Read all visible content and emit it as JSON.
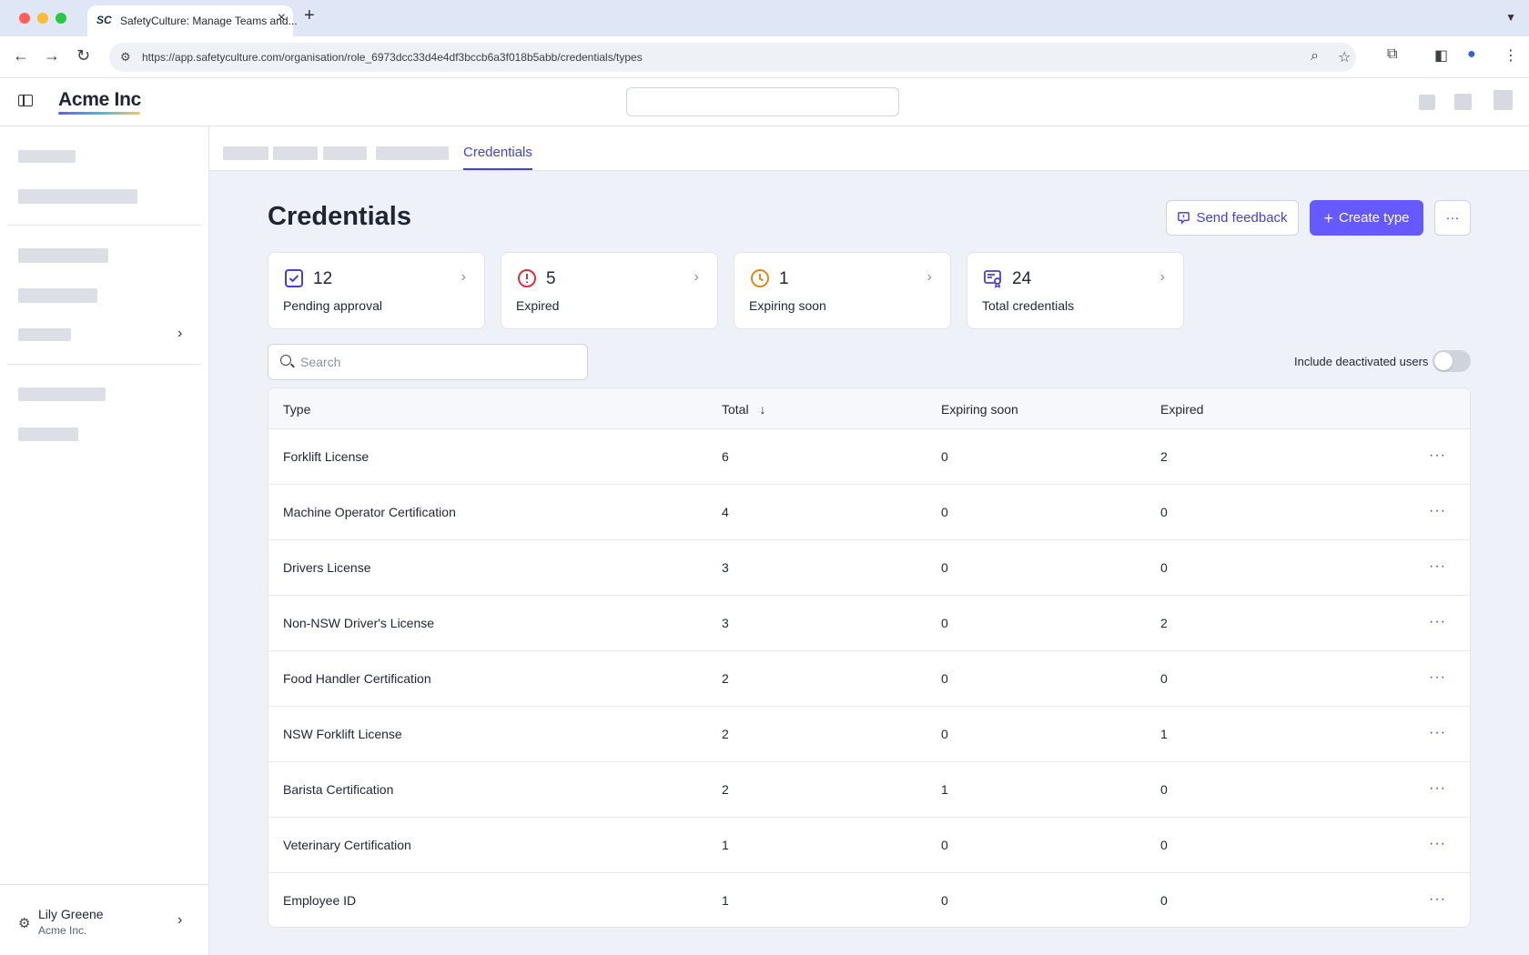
{
  "browser": {
    "tab_favicon": "SC",
    "tab_title": "SafetyCulture: Manage Teams and...",
    "url": "https://app.safetyculture.com/organisation/role_6973dcc33d4e4df3bccb6a3f018b5abb/credentials/types",
    "colors": {
      "close": "#ff5f57",
      "minimize": "#febc2e",
      "maximize": "#28c840"
    }
  },
  "header": {
    "brand": "Acme Inc"
  },
  "subnav": {
    "active_tab": "Credentials"
  },
  "page": {
    "title": "Credentials",
    "send_feedback_label": "Send feedback",
    "create_type_label": "Create type",
    "more_label": "···"
  },
  "stats": [
    {
      "value": "12",
      "label": "Pending approval",
      "icon": "check-square-icon",
      "color": "#4740d4"
    },
    {
      "value": "5",
      "label": "Expired",
      "icon": "alert-circle-icon",
      "color": "#d4343f"
    },
    {
      "value": "1",
      "label": "Expiring soon",
      "icon": "clock-icon",
      "color": "#e08a1e"
    },
    {
      "value": "24",
      "label": "Total credentials",
      "icon": "certificate-icon",
      "color": "#4740d4"
    }
  ],
  "search": {
    "placeholder": "Search",
    "value": ""
  },
  "toggle": {
    "label": "Include deactivated users",
    "on": false
  },
  "table": {
    "columns": [
      "Type",
      "Total",
      "Expiring soon",
      "Expired"
    ],
    "sort_indicator": "↓",
    "rows": [
      {
        "type": "Forklift License",
        "total": "6",
        "expiring": "0",
        "expired": "2"
      },
      {
        "type": "Machine Operator Certification",
        "total": "4",
        "expiring": "0",
        "expired": "0"
      },
      {
        "type": "Drivers License",
        "total": "3",
        "expiring": "0",
        "expired": "0"
      },
      {
        "type": "Non-NSW Driver's License",
        "total": "3",
        "expiring": "0",
        "expired": "2"
      },
      {
        "type": "Food Handler Certification",
        "total": "2",
        "expiring": "0",
        "expired": "0"
      },
      {
        "type": "NSW Forklift License",
        "total": "2",
        "expiring": "0",
        "expired": "1"
      },
      {
        "type": "Barista Certification",
        "total": "2",
        "expiring": "1",
        "expired": "0"
      },
      {
        "type": "Veterinary Certification",
        "total": "1",
        "expiring": "0",
        "expired": "0"
      },
      {
        "type": "Employee ID",
        "total": "1",
        "expiring": "0",
        "expired": "0"
      }
    ]
  },
  "user": {
    "name": "Lily Greene",
    "org": "Acme Inc."
  },
  "accent": "#6559ff"
}
